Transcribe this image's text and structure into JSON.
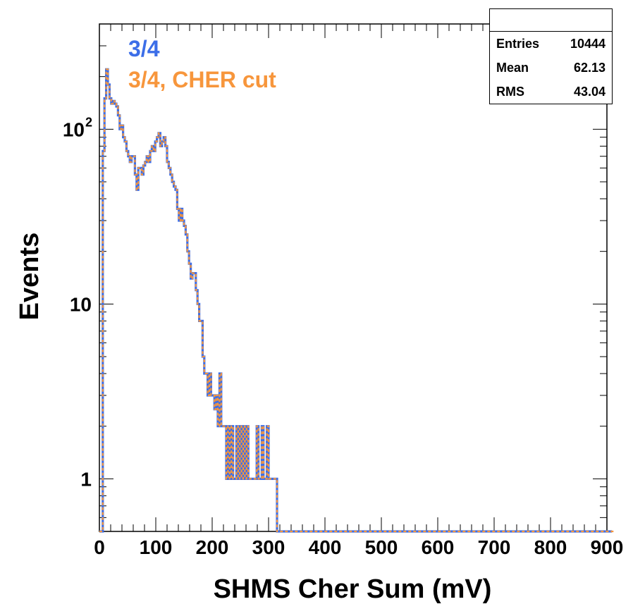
{
  "stats": {
    "rows": [
      {
        "label": "Entries",
        "value": "10444"
      },
      {
        "label": "Mean",
        "value": "62.13"
      },
      {
        "label": "RMS",
        "value": "43.04"
      }
    ]
  },
  "colors": {
    "series_a": "#3c6ee8",
    "series_b": "#f7963c",
    "axis": "#000000"
  },
  "chart_data": {
    "type": "line",
    "title": "",
    "xlabel": "SHMS Cher Sum (mV)",
    "ylabel": "Events",
    "xlim": [
      0,
      900
    ],
    "ylim": [
      0.5,
      400
    ],
    "yscale": "log",
    "x_ticks": [
      "0",
      "100",
      "200",
      "300",
      "400",
      "500",
      "600",
      "700",
      "800",
      "900"
    ],
    "y_ticks": [
      {
        "value": 1,
        "label": "1"
      },
      {
        "value": 10,
        "label": "10"
      },
      {
        "value": 100,
        "label": "10",
        "exp": "2"
      }
    ],
    "legend": {
      "placement": "top-left",
      "entries": [
        {
          "label": "3/4",
          "color": "#3c6ee8"
        },
        {
          "label": "3/4, CHER cut",
          "color": "#f7963c"
        }
      ]
    },
    "bin_width": 3,
    "bins_start": 0,
    "series": [
      {
        "name": "3/4",
        "values": [
          0,
          0,
          75,
          150,
          220,
          180,
          150,
          140,
          145,
          140,
          135,
          120,
          100,
          105,
          90,
          85,
          75,
          70,
          65,
          70,
          70,
          55,
          45,
          60,
          60,
          55,
          62,
          65,
          70,
          65,
          75,
          80,
          75,
          85,
          90,
          95,
          80,
          85,
          90,
          80,
          65,
          60,
          55,
          50,
          47,
          45,
          35,
          30,
          35,
          30,
          28,
          25,
          20,
          17,
          14,
          15,
          15,
          12,
          10,
          8,
          8,
          5,
          4,
          4,
          3,
          4,
          3,
          3,
          2.5,
          3,
          2,
          4,
          2,
          2,
          2,
          1,
          2,
          1,
          2,
          1,
          1,
          2,
          1,
          2,
          1,
          2,
          1,
          2,
          1,
          1,
          1,
          1,
          1,
          2,
          1,
          1,
          2,
          1,
          1,
          2,
          1,
          1,
          1,
          1,
          1,
          0,
          0,
          0,
          0,
          0,
          0,
          0,
          0,
          0,
          0,
          0,
          0,
          0,
          0,
          0,
          0,
          0,
          0,
          0,
          0,
          0,
          0,
          0,
          0,
          0,
          0,
          0,
          0,
          0,
          0,
          0,
          0,
          0,
          0,
          0,
          0,
          0,
          0,
          0,
          0,
          0,
          0,
          0,
          0,
          0,
          0,
          0,
          0,
          0,
          0,
          0,
          0,
          0,
          0,
          0,
          0,
          0,
          0,
          0,
          0,
          0,
          0,
          0,
          0,
          0,
          0,
          0,
          0,
          0,
          0,
          0,
          0,
          0,
          0,
          0,
          0,
          0,
          0,
          0,
          0,
          0,
          0,
          0,
          0,
          0,
          0,
          0,
          0,
          0,
          0,
          0,
          0,
          0,
          0,
          0,
          0,
          0,
          0,
          0,
          0,
          0,
          0,
          0,
          0,
          0,
          0,
          0,
          0,
          0,
          0,
          0,
          0,
          0,
          0,
          0,
          0,
          0,
          0,
          0,
          0,
          0,
          0,
          0,
          0,
          0,
          0,
          0,
          0,
          0,
          0,
          0,
          0,
          0,
          0,
          0,
          0,
          0,
          0,
          0,
          0,
          0,
          0,
          0,
          0,
          0,
          0,
          0,
          0,
          0,
          0,
          0,
          0,
          0,
          0,
          0,
          0,
          0,
          0,
          0,
          0,
          0,
          0,
          0,
          0,
          0,
          0,
          0,
          0,
          0,
          0,
          0,
          0,
          0,
          0,
          0,
          0,
          0,
          0,
          0,
          0,
          0,
          0,
          0,
          0,
          0,
          0,
          0,
          0,
          0,
          0,
          0,
          0,
          0,
          0,
          0,
          0,
          0,
          0
        ]
      },
      {
        "name": "3/4, CHER cut",
        "values": [
          0,
          0,
          75,
          150,
          220,
          180,
          150,
          140,
          145,
          140,
          135,
          120,
          100,
          105,
          90,
          85,
          75,
          70,
          65,
          70,
          70,
          55,
          45,
          60,
          60,
          55,
          62,
          65,
          70,
          65,
          75,
          80,
          75,
          85,
          90,
          95,
          80,
          85,
          90,
          80,
          65,
          60,
          55,
          50,
          47,
          45,
          35,
          30,
          35,
          30,
          28,
          25,
          20,
          17,
          14,
          15,
          15,
          12,
          10,
          8,
          8,
          5,
          4,
          4,
          3,
          4,
          3,
          3,
          2.5,
          3,
          2,
          4,
          2,
          2,
          2,
          1,
          2,
          1,
          2,
          1,
          1,
          2,
          1,
          2,
          1,
          2,
          1,
          2,
          1,
          1,
          1,
          1,
          1,
          2,
          1,
          1,
          2,
          1,
          1,
          2,
          1,
          1,
          1,
          1,
          1,
          0,
          0,
          0,
          0,
          0,
          0,
          0,
          0,
          0,
          0,
          0,
          0,
          0,
          0,
          0,
          0,
          0,
          0,
          0,
          0,
          0,
          0,
          0,
          0,
          0,
          0,
          0,
          0,
          0,
          0,
          0,
          0,
          0,
          0,
          0,
          0,
          0,
          0,
          0,
          0,
          0,
          0,
          0,
          0,
          0,
          0,
          0,
          0,
          0,
          0,
          0,
          0,
          0,
          0,
          0,
          0,
          0,
          0,
          0,
          0,
          0,
          0,
          0,
          0,
          0,
          0,
          0,
          0,
          0,
          0,
          0,
          0,
          0,
          0,
          0,
          0,
          0,
          0,
          0,
          0,
          0,
          0,
          0,
          0,
          0,
          0,
          0,
          0,
          0,
          0,
          0,
          0,
          0,
          0,
          0,
          0,
          0,
          0,
          0,
          0,
          0,
          0,
          0,
          0,
          0,
          0,
          0,
          0,
          0,
          0,
          0,
          0,
          0,
          0,
          0,
          0,
          0,
          0,
          0,
          0,
          0,
          0,
          0,
          0,
          0,
          0,
          0,
          0,
          0,
          0,
          0,
          0,
          0,
          0,
          0,
          0,
          0,
          0,
          0,
          0,
          0,
          0,
          0,
          0,
          0,
          0,
          0,
          0,
          0,
          0,
          0,
          0,
          0,
          0,
          0,
          0,
          0,
          0,
          0,
          0,
          0,
          0,
          0,
          0,
          0,
          0,
          0,
          0,
          0,
          0,
          0,
          0,
          0,
          0,
          0,
          0,
          0,
          0,
          0,
          0,
          0,
          0,
          0,
          0,
          0,
          0,
          0,
          0,
          0,
          0,
          0,
          0,
          0,
          0,
          0,
          0,
          0,
          0,
          0
        ]
      }
    ]
  }
}
